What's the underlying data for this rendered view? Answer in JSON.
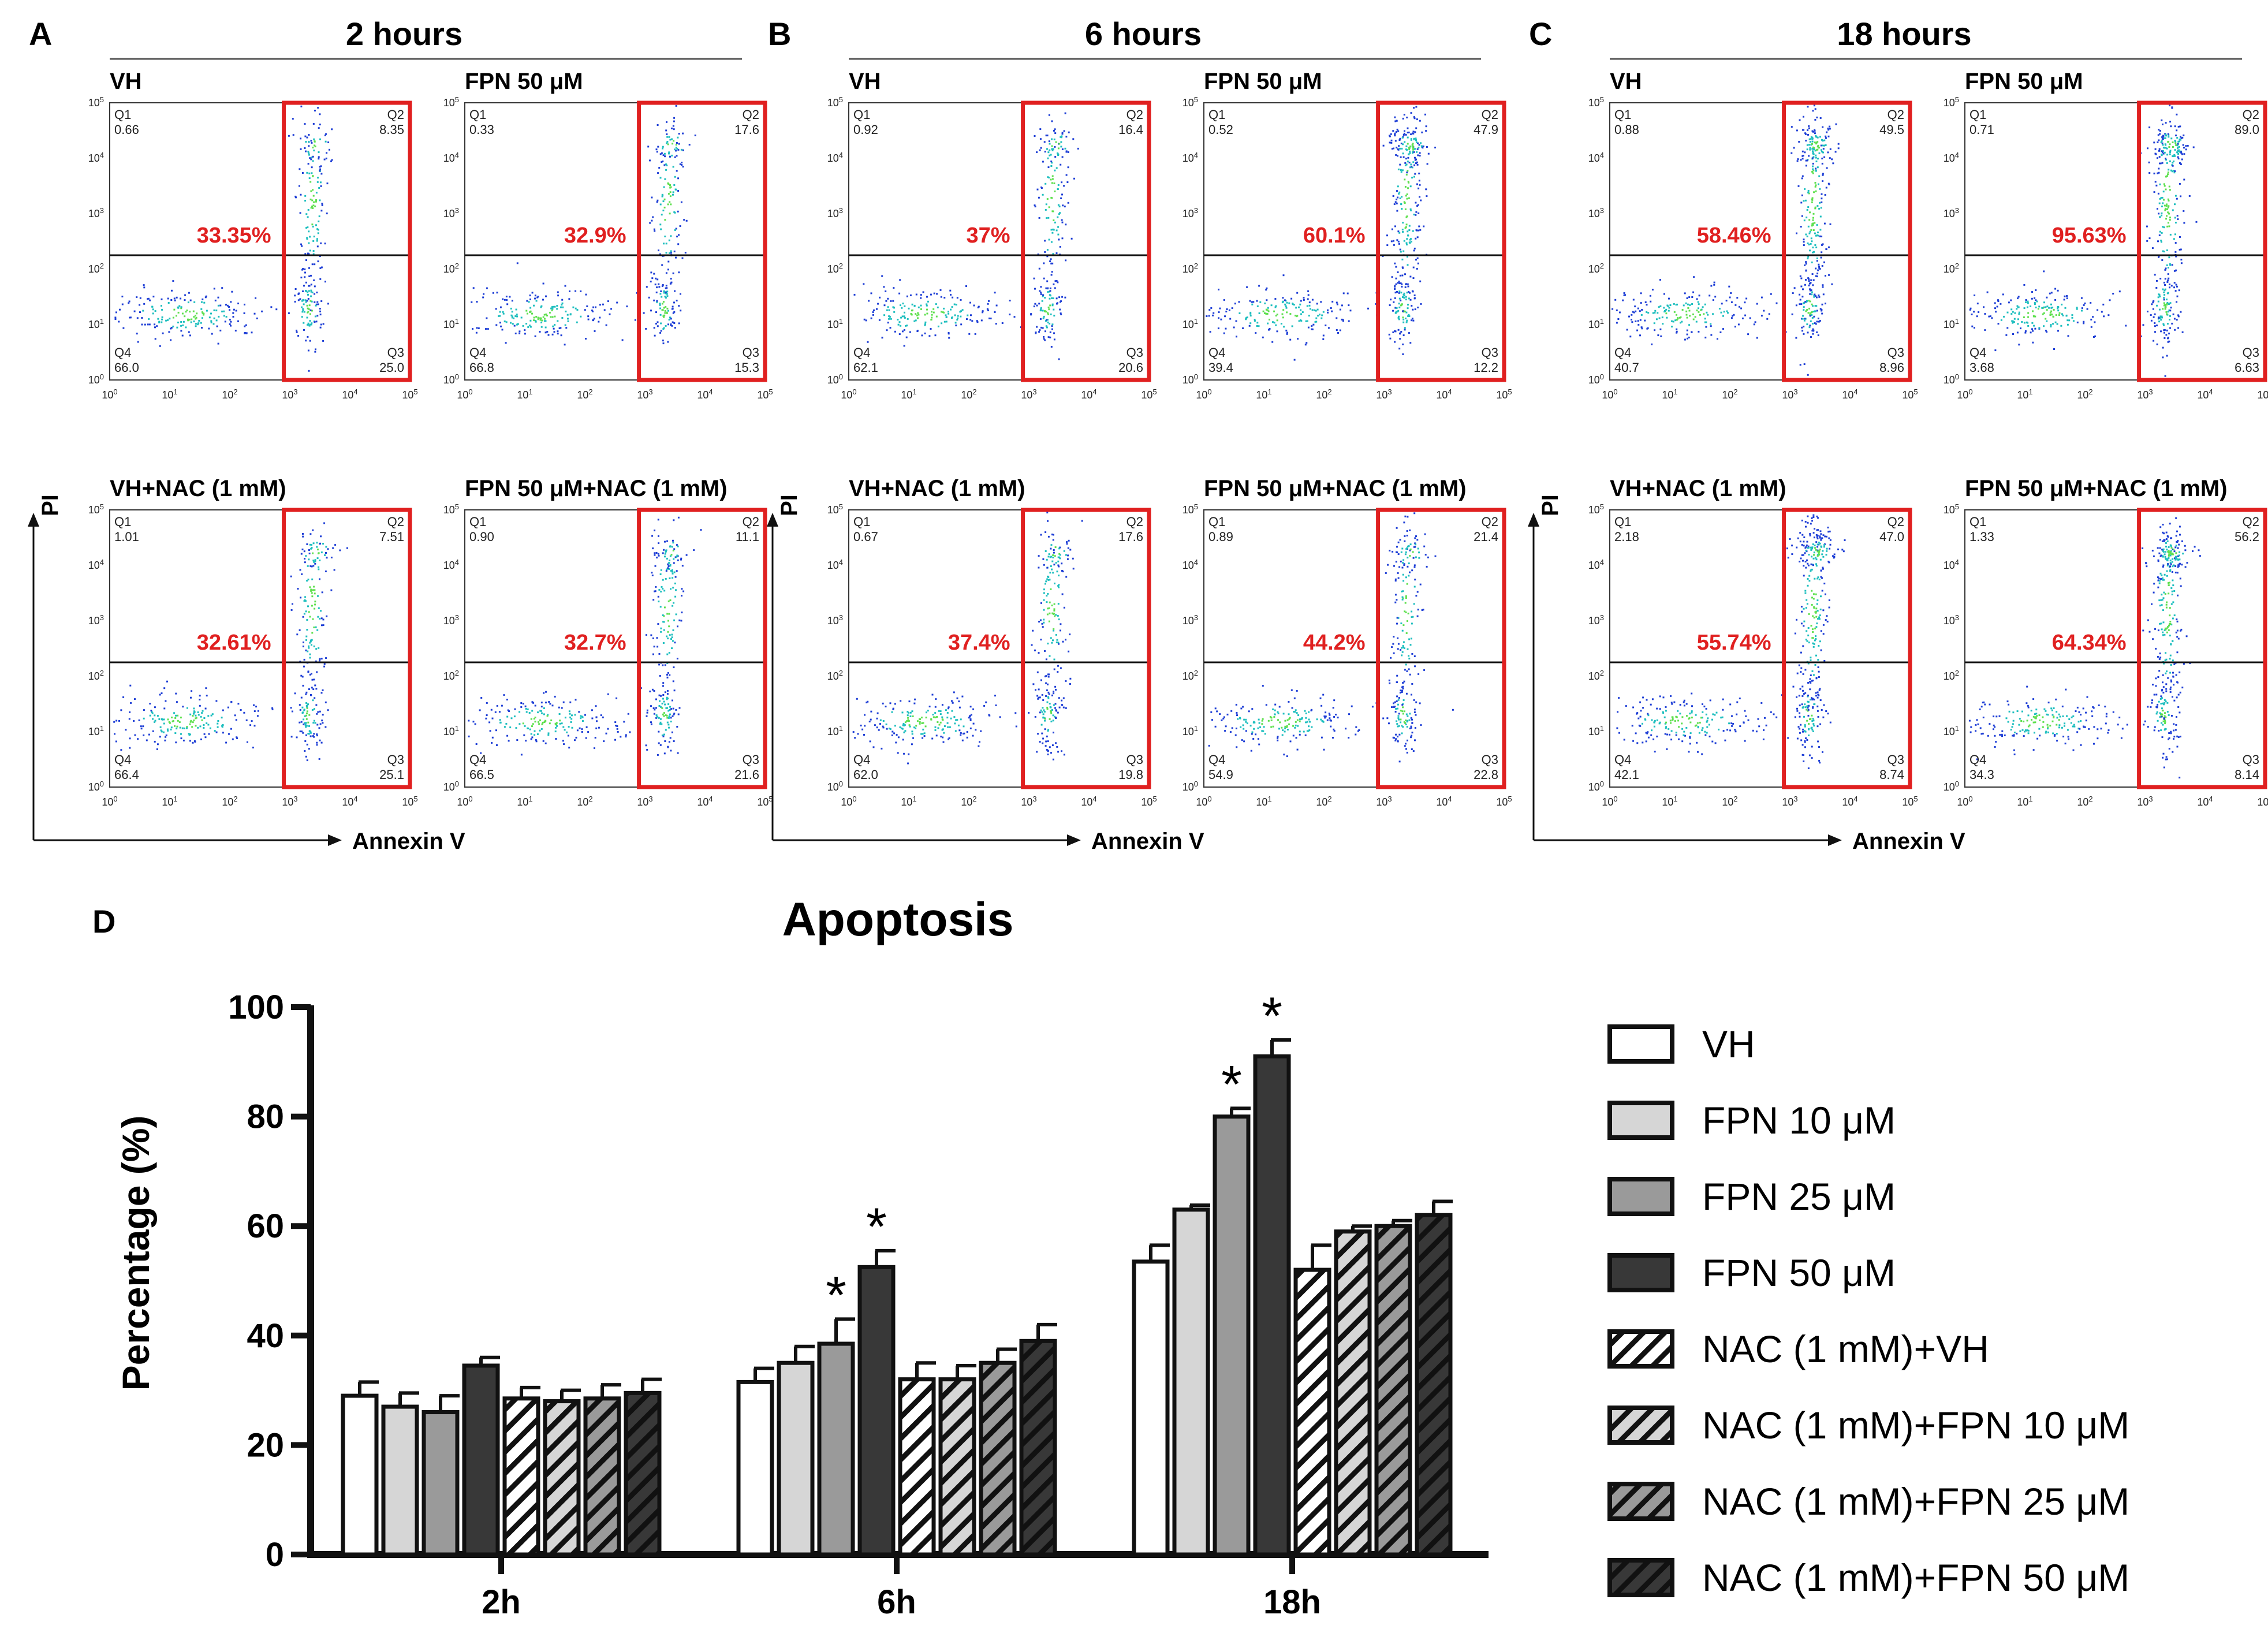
{
  "panels": [
    {
      "letter": "A",
      "title": "2 hours",
      "plots": [
        {
          "label": "VH",
          "q1_name": "Q1",
          "q1": "0.66",
          "q2_name": "Q2",
          "q2": "8.35",
          "q3_name": "Q3",
          "q3": "25.0",
          "q4_name": "Q4",
          "q4": "66.0",
          "apoptosis": "33.35%"
        },
        {
          "label": "FPN 50 μM",
          "q1_name": "Q1",
          "q1": "0.33",
          "q2_name": "Q2",
          "q2": "17.6",
          "q3_name": "Q3",
          "q3": "15.3",
          "q4_name": "Q4",
          "q4": "66.8",
          "apoptosis": "32.9%"
        },
        {
          "label": "VH+NAC (1 mM)",
          "q1_name": "Q1",
          "q1": "1.01",
          "q2_name": "Q2",
          "q2": "7.51",
          "q3_name": "Q3",
          "q3": "25.1",
          "q4_name": "Q4",
          "q4": "66.4",
          "apoptosis": "32.61%"
        },
        {
          "label": "FPN 50 μM+NAC (1 mM)",
          "q1_name": "Q1",
          "q1": "0.90",
          "q2_name": "Q2",
          "q2": "11.1",
          "q3_name": "Q3",
          "q3": "21.6",
          "q4_name": "Q4",
          "q4": "66.5",
          "apoptosis": "32.7%"
        }
      ]
    },
    {
      "letter": "B",
      "title": "6 hours",
      "plots": [
        {
          "label": "VH",
          "q1_name": "Q1",
          "q1": "0.92",
          "q2_name": "Q2",
          "q2": "16.4",
          "q3_name": "Q3",
          "q3": "20.6",
          "q4_name": "Q4",
          "q4": "62.1",
          "apoptosis": "37%"
        },
        {
          "label": "FPN 50 μM",
          "q1_name": "Q1",
          "q1": "0.52",
          "q2_name": "Q2",
          "q2": "47.9",
          "q3_name": "Q3",
          "q3": "12.2",
          "q4_name": "Q4",
          "q4": "39.4",
          "apoptosis": "60.1%"
        },
        {
          "label": "VH+NAC (1 mM)",
          "q1_name": "Q1",
          "q1": "0.67",
          "q2_name": "Q2",
          "q2": "17.6",
          "q3_name": "Q3",
          "q3": "19.8",
          "q4_name": "Q4",
          "q4": "62.0",
          "apoptosis": "37.4%"
        },
        {
          "label": "FPN 50 μM+NAC (1 mM)",
          "q1_name": "Q1",
          "q1": "0.89",
          "q2_name": "Q2",
          "q2": "21.4",
          "q3_name": "Q3",
          "q3": "22.8",
          "q4_name": "Q4",
          "q4": "54.9",
          "apoptosis": "44.2%"
        }
      ]
    },
    {
      "letter": "C",
      "title": "18 hours",
      "plots": [
        {
          "label": "VH",
          "q1_name": "Q1",
          "q1": "0.88",
          "q2_name": "Q2",
          "q2": "49.5",
          "q3_name": "Q3",
          "q3": "8.96",
          "q4_name": "Q4",
          "q4": "40.7",
          "apoptosis": "58.46%"
        },
        {
          "label": "FPN 50 μM",
          "q1_name": "Q1",
          "q1": "0.71",
          "q2_name": "Q2",
          "q2": "89.0",
          "q3_name": "Q3",
          "q3": "6.63",
          "q4_name": "Q4",
          "q4": "3.68",
          "apoptosis": "95.63%"
        },
        {
          "label": "VH+NAC (1 mM)",
          "q1_name": "Q1",
          "q1": "2.18",
          "q2_name": "Q2",
          "q2": "47.0",
          "q3_name": "Q3",
          "q3": "8.74",
          "q4_name": "Q4",
          "q4": "42.1",
          "apoptosis": "55.74%"
        },
        {
          "label": "FPN 50 μM+NAC (1 mM)",
          "q1_name": "Q1",
          "q1": "1.33",
          "q2_name": "Q2",
          "q2": "56.2",
          "q3_name": "Q3",
          "q3": "8.14",
          "q4_name": "Q4",
          "q4": "34.3",
          "apoptosis": "64.34%"
        }
      ]
    }
  ],
  "flow_axes": {
    "x_label": "Annexin V",
    "y_label": "PI",
    "tick_base": "10",
    "tick_exponents": [
      "0",
      "1",
      "2",
      "3",
      "4",
      "5"
    ]
  },
  "colors": {
    "gate": "#e02020",
    "percent_text": "#e02020",
    "density_low": "#1f3fd6",
    "density_mid": "#1fbfbf",
    "density_high": "#5fe04f"
  },
  "chart_data": {
    "type": "bar",
    "panel_letter": "D",
    "title": "Apoptosis",
    "xlabel": "",
    "ylabel": "Percentage (%)",
    "ylim": [
      0,
      100
    ],
    "yticks": [
      0,
      20,
      40,
      60,
      80,
      100
    ],
    "categories": [
      "2h",
      "6h",
      "18h"
    ],
    "significance_marker": "*",
    "series": [
      {
        "name": "VH",
        "fill": "#ffffff",
        "hatch": false,
        "values": [
          29,
          31.5,
          53.5
        ],
        "errors": [
          2.5,
          2.5,
          3
        ],
        "significant": [
          false,
          false,
          false
        ]
      },
      {
        "name": "FPN 10 μM",
        "fill": "#d6d6d6",
        "hatch": false,
        "values": [
          27,
          35,
          63
        ],
        "errors": [
          2.5,
          3,
          0.8
        ],
        "significant": [
          false,
          false,
          false
        ]
      },
      {
        "name": "FPN 25 μM",
        "fill": "#9a9a9a",
        "hatch": false,
        "values": [
          26,
          38.5,
          80
        ],
        "errors": [
          3,
          4.5,
          1.5
        ],
        "significant": [
          false,
          true,
          true
        ]
      },
      {
        "name": "FPN 50 μM",
        "fill": "#383838",
        "hatch": false,
        "values": [
          34.5,
          52.5,
          91
        ],
        "errors": [
          1.5,
          3,
          3
        ],
        "significant": [
          false,
          true,
          true
        ]
      },
      {
        "name": "NAC (1 mM)+VH",
        "fill": "#ffffff",
        "hatch": true,
        "values": [
          28.5,
          32,
          52
        ],
        "errors": [
          2,
          3,
          4.5
        ],
        "significant": [
          false,
          false,
          false
        ]
      },
      {
        "name": "NAC (1 mM)+FPN 10 μM",
        "fill": "#d6d6d6",
        "hatch": true,
        "values": [
          28,
          32,
          59
        ],
        "errors": [
          2,
          2.5,
          1
        ],
        "significant": [
          false,
          false,
          false
        ]
      },
      {
        "name": "NAC (1 mM)+FPN 25 μM",
        "fill": "#9a9a9a",
        "hatch": true,
        "values": [
          28.5,
          35,
          60
        ],
        "errors": [
          2.5,
          2.5,
          1
        ],
        "significant": [
          false,
          false,
          false
        ]
      },
      {
        "name": "NAC (1 mM)+FPN 50 μM",
        "fill": "#383838",
        "hatch": true,
        "values": [
          29.5,
          39,
          62
        ],
        "errors": [
          2.5,
          3,
          2.5
        ],
        "significant": [
          false,
          false,
          false
        ]
      }
    ]
  }
}
